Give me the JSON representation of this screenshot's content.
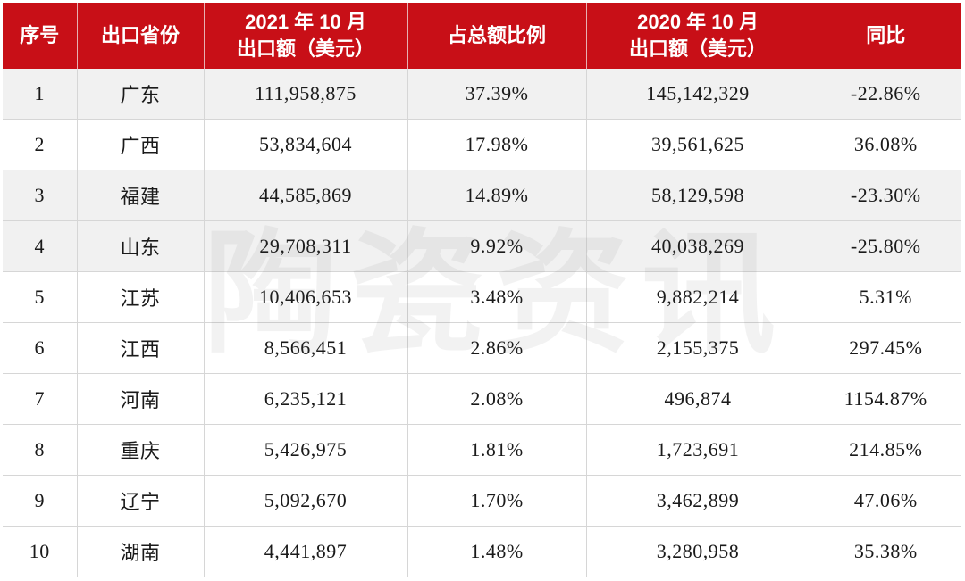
{
  "table": {
    "headers": [
      {
        "line1": "序号",
        "line2": ""
      },
      {
        "line1": "出口省份",
        "line2": ""
      },
      {
        "line1": "2021 年 10 月",
        "line2": "出口额（美元）"
      },
      {
        "line1": "占总额比例",
        "line2": ""
      },
      {
        "line1": "2020 年 10 月",
        "line2": "出口额（美元）"
      },
      {
        "line1": "同比",
        "line2": ""
      }
    ],
    "rows": [
      [
        "1",
        "广东",
        "111,958,875",
        "37.39%",
        "145,142,329",
        "-22.86%"
      ],
      [
        "2",
        "广西",
        "53,834,604",
        "17.98%",
        "39,561,625",
        "36.08%"
      ],
      [
        "3",
        "福建",
        "44,585,869",
        "14.89%",
        "58,129,598",
        "-23.30%"
      ],
      [
        "4",
        "山东",
        "29,708,311",
        "9.92%",
        "40,038,269",
        "-25.80%"
      ],
      [
        "5",
        "江苏",
        "10,406,653",
        "3.48%",
        "9,882,214",
        "5.31%"
      ],
      [
        "6",
        "江西",
        "8,566,451",
        "2.86%",
        "2,155,375",
        "297.45%"
      ],
      [
        "7",
        "河南",
        "6,235,121",
        "2.08%",
        "496,874",
        "1154.87%"
      ],
      [
        "8",
        "重庆",
        "5,426,975",
        "1.81%",
        "1,723,691",
        "214.85%"
      ],
      [
        "9",
        "辽宁",
        "5,092,670",
        "1.70%",
        "3,462,899",
        "47.06%"
      ],
      [
        "10",
        "湖南",
        "4,441,897",
        "1.48%",
        "3,280,958",
        "35.38%"
      ]
    ]
  },
  "watermark": {
    "chars": [
      "陶",
      "瓷",
      "资",
      "讯"
    ]
  },
  "colors": {
    "header_bg": "#c80f17",
    "header_text": "#ffffff",
    "shade_row": "#f1f1f1"
  }
}
